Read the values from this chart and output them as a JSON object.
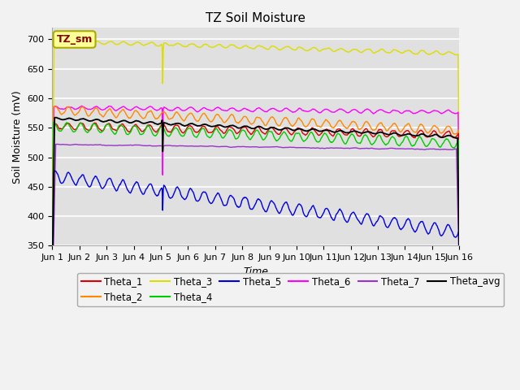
{
  "title": "TZ Soil Moisture",
  "xlabel": "Time",
  "ylabel": "Soil Moisture (mV)",
  "ylim": [
    350,
    720
  ],
  "background_color": "#e0e0e0",
  "grid_color": "#ffffff",
  "legend_label": "TZ_sm",
  "legend_box_color": "#ffff99",
  "legend_box_edge_color": "#aaaa00",
  "xtick_labels": [
    "Jun 1",
    "Jun 2",
    "Jun 3",
    "Jun 4",
    "Jun 5",
    "Jun 6",
    "Jun 7",
    "Jun 8",
    "Jun 9",
    "Jun 10",
    "Jun 11",
    "Jun 12",
    "Jun 13",
    "Jun 14",
    "Jun 15",
    "Jun 16"
  ],
  "series": {
    "Theta_1": {
      "color": "#dd0000",
      "lw": 1.0
    },
    "Theta_2": {
      "color": "#ff8800",
      "lw": 1.0
    },
    "Theta_3": {
      "color": "#dddd00",
      "lw": 1.0
    },
    "Theta_4": {
      "color": "#00cc00",
      "lw": 1.0
    },
    "Theta_5": {
      "color": "#0000dd",
      "lw": 1.0
    },
    "Theta_6": {
      "color": "#ff00ff",
      "lw": 1.0
    },
    "Theta_7": {
      "color": "#9933cc",
      "lw": 1.0
    },
    "Theta_avg": {
      "color": "#000000",
      "lw": 1.3
    }
  }
}
